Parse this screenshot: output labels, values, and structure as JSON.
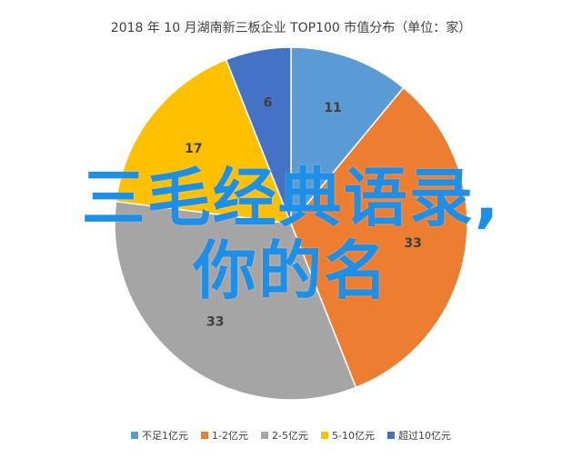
{
  "chart_data": {
    "type": "pie",
    "title": "2018 年 10 月湖南新三板企业 TOP100 市值分布（单位：家）",
    "categories": [
      "不足1亿元",
      "1-2亿元",
      "2-5亿元",
      "5-10亿元",
      "超过10亿元"
    ],
    "values": [
      11,
      33,
      33,
      17,
      6
    ],
    "colors": [
      "#5b9bd5",
      "#ed7d31",
      "#a5a5a5",
      "#ffc000",
      "#4472c4"
    ],
    "legend": "bottom"
  },
  "overlay": {
    "line1": "三毛经典语录,",
    "line2": "你的名"
  }
}
